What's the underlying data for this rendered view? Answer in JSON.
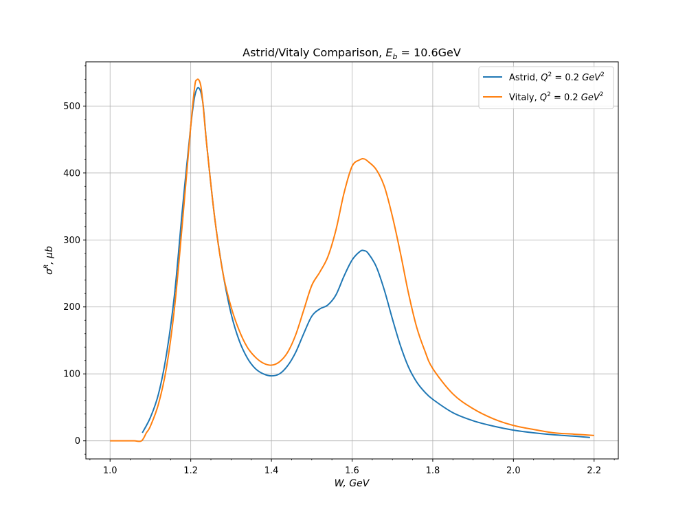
{
  "chart_data": {
    "type": "line",
    "title": "Astrid/Vitaly Comparison, E_b = 10.6GeV",
    "title_parts": {
      "prefix": "Astrid/Vitaly Comparison, ",
      "math": "E",
      "math_sub": "b",
      "math_rest": " = 10.6GeV"
    },
    "xlabel": "W, GeV",
    "ylabel": "σR, μb",
    "ylabel_parts": {
      "symbol": "σ",
      "sup": "R",
      "rest": ", μb"
    },
    "xlim": [
      0.94,
      2.26
    ],
    "ylim": [
      -27,
      566
    ],
    "x_ticks": [
      1.0,
      1.2,
      1.4,
      1.6,
      1.8,
      2.0,
      2.2
    ],
    "x_tick_labels": [
      "1.0",
      "1.2",
      "1.4",
      "1.6",
      "1.8",
      "2.0",
      "2.2"
    ],
    "y_ticks": [
      0,
      100,
      200,
      300,
      400,
      500
    ],
    "y_tick_labels": [
      "0",
      "100",
      "200",
      "300",
      "400",
      "500"
    ],
    "grid": true,
    "legend_position": "top-right",
    "series": [
      {
        "name": "Astrid, Q2 = 0.2 GeV2",
        "label_prefix": "Astrid, ",
        "color": "#1f77b4",
        "x": [
          1.08,
          1.1,
          1.12,
          1.14,
          1.16,
          1.18,
          1.2,
          1.21,
          1.22,
          1.23,
          1.24,
          1.26,
          1.28,
          1.3,
          1.32,
          1.34,
          1.36,
          1.38,
          1.4,
          1.42,
          1.44,
          1.46,
          1.48,
          1.5,
          1.52,
          1.54,
          1.56,
          1.58,
          1.6,
          1.62,
          1.63,
          1.64,
          1.66,
          1.68,
          1.7,
          1.72,
          1.74,
          1.76,
          1.78,
          1.8,
          1.85,
          1.9,
          1.95,
          2.0,
          2.05,
          2.1,
          2.15,
          2.19
        ],
        "y": [
          12,
          35,
          70,
          130,
          220,
          350,
          470,
          515,
          527,
          505,
          440,
          330,
          250,
          190,
          150,
          124,
          108,
          100,
          97,
          100,
          112,
          132,
          160,
          186,
          197,
          203,
          218,
          246,
          270,
          283,
          284,
          280,
          260,
          225,
          182,
          142,
          110,
          88,
          73,
          62,
          42,
          30,
          22,
          16,
          12,
          9,
          7,
          5
        ]
      },
      {
        "name": "Vitaly, Q2 = 0.2 GeV2",
        "label_prefix": "Vitaly, ",
        "color": "#ff7f0e",
        "x": [
          1.0,
          1.02,
          1.04,
          1.06,
          1.078,
          1.09,
          1.1,
          1.12,
          1.14,
          1.16,
          1.18,
          1.2,
          1.21,
          1.215,
          1.22,
          1.225,
          1.23,
          1.24,
          1.26,
          1.28,
          1.3,
          1.32,
          1.34,
          1.36,
          1.38,
          1.4,
          1.42,
          1.44,
          1.46,
          1.48,
          1.5,
          1.52,
          1.54,
          1.56,
          1.58,
          1.6,
          1.62,
          1.63,
          1.64,
          1.66,
          1.68,
          1.7,
          1.72,
          1.74,
          1.76,
          1.78,
          1.8,
          1.85,
          1.9,
          1.95,
          2.0,
          2.05,
          2.1,
          2.15,
          2.2
        ],
        "y": [
          0,
          0,
          0,
          0,
          0,
          12,
          22,
          55,
          110,
          200,
          330,
          470,
          530,
          539,
          539,
          530,
          505,
          440,
          330,
          250,
          200,
          165,
          140,
          125,
          116,
          113,
          118,
          132,
          158,
          195,
          232,
          252,
          275,
          315,
          370,
          410,
          420,
          421,
          417,
          405,
          380,
          335,
          280,
          220,
          170,
          135,
          108,
          70,
          48,
          33,
          23,
          17,
          12,
          10,
          8
        ]
      }
    ]
  }
}
